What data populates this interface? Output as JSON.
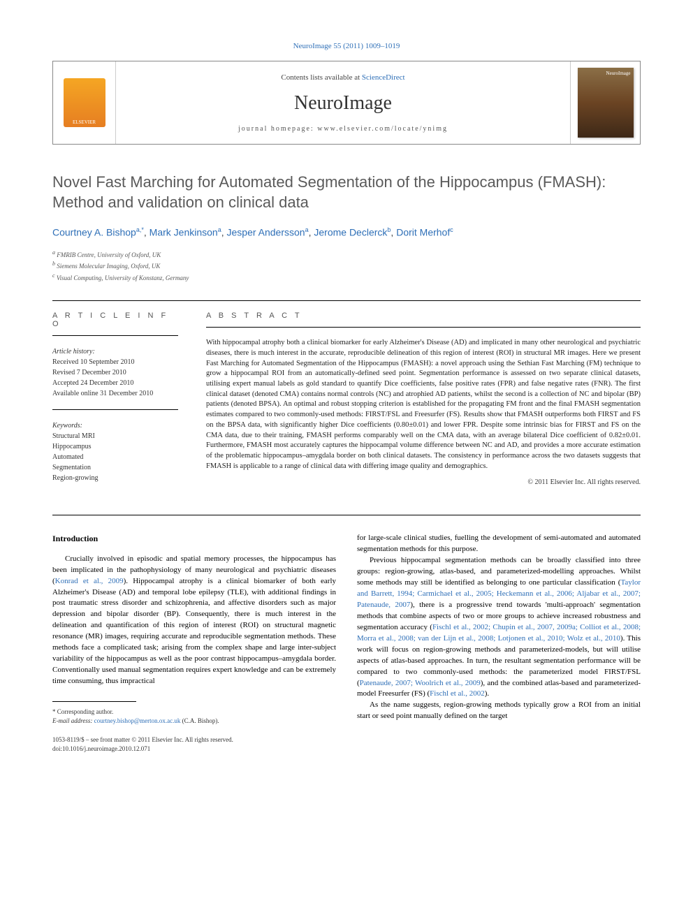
{
  "top_link": "NeuroImage 55 (2011) 1009–1019",
  "banner": {
    "elsevier": "ELSEVIER",
    "contents_prefix": "Contents lists available at ",
    "contents_link": "ScienceDirect",
    "journal": "NeuroImage",
    "homepage_prefix": "journal homepage: ",
    "homepage_url": "www.elsevier.com/locate/ynimg"
  },
  "title": "Novel Fast Marching for Automated Segmentation of the Hippocampus (FMASH): Method and validation on clinical data",
  "authors": [
    {
      "name": "Courtney A. Bishop",
      "sup": "a,*"
    },
    {
      "name": "Mark Jenkinson",
      "sup": "a"
    },
    {
      "name": "Jesper Andersson",
      "sup": "a"
    },
    {
      "name": "Jerome Declerck",
      "sup": "b"
    },
    {
      "name": "Dorit Merhof",
      "sup": "c"
    }
  ],
  "affiliations": [
    {
      "sup": "a",
      "text": "FMRIB Centre, University of Oxford, UK"
    },
    {
      "sup": "b",
      "text": "Siemens Molecular Imaging, Oxford, UK"
    },
    {
      "sup": "c",
      "text": "Visual Computing, University of Konstanz, Germany"
    }
  ],
  "article_info": {
    "heading": "A R T I C L E   I N F O",
    "history_label": "Article history:",
    "history": [
      "Received 10 September 2010",
      "Revised 7 December 2010",
      "Accepted 24 December 2010",
      "Available online 31 December 2010"
    ],
    "keywords_label": "Keywords:",
    "keywords": [
      "Structural MRI",
      "Hippocampus",
      "Automated",
      "Segmentation",
      "Region-growing"
    ]
  },
  "abstract": {
    "heading": "A B S T R A C T",
    "text": "With hippocampal atrophy both a clinical biomarker for early Alzheimer's Disease (AD) and implicated in many other neurological and psychiatric diseases, there is much interest in the accurate, reproducible delineation of this region of interest (ROI) in structural MR images. Here we present Fast Marching for Automated Segmentation of the Hippocampus (FMASH): a novel approach using the Sethian Fast Marching (FM) technique to grow a hippocampal ROI from an automatically-defined seed point. Segmentation performance is assessed on two separate clinical datasets, utilising expert manual labels as gold standard to quantify Dice coefficients, false positive rates (FPR) and false negative rates (FNR). The first clinical dataset (denoted CMA) contains normal controls (NC) and atrophied AD patients, whilst the second is a collection of NC and bipolar (BP) patients (denoted BPSA). An optimal and robust stopping criterion is established for the propagating FM front and the final FMASH segmentation estimates compared to two commonly-used methods: FIRST/FSL and Freesurfer (FS). Results show that FMASH outperforms both FIRST and FS on the BPSA data, with significantly higher Dice coefficients (0.80±0.01) and lower FPR. Despite some intrinsic bias for FIRST and FS on the CMA data, due to their training, FMASH performs comparably well on the CMA data, with an average bilateral Dice coefficient of 0.82±0.01. Furthermore, FMASH most accurately captures the hippocampal volume difference between NC and AD, and provides a more accurate estimation of the problematic hippocampus–amygdala border on both clinical datasets. The consistency in performance across the two datasets suggests that FMASH is applicable to a range of clinical data with differing image quality and demographics.",
    "copyright": "© 2011 Elsevier Inc. All rights reserved."
  },
  "body": {
    "intro_heading": "Introduction",
    "col1_p1_pre": "Crucially involved in episodic and spatial memory processes, the hippocampus has been implicated in the pathophysiology of many neurological and psychiatric diseases (",
    "col1_cite1": "Konrad et al., 2009",
    "col1_p1_post": "). Hippocampal atrophy is a clinical biomarker of both early Alzheimer's Disease (AD) and temporal lobe epilepsy (TLE), with additional findings in post traumatic stress disorder and schizophrenia, and affective disorders such as major depression and bipolar disorder (BP). Consequently, there is much interest in the delineation and quantification of this region of interest (ROI) on structural magnetic resonance (MR) images, requiring accurate and reproducible segmentation methods. These methods face a complicated task; arising from the complex shape and large inter-subject variability of the hippocampus as well as the poor contrast hippocampus–amygdala border. Conventionally used manual segmentation requires expert knowledge and can be extremely time consuming, thus impractical",
    "col2_p1": "for large-scale clinical studies, fuelling the development of semi-automated and automated segmentation methods for this purpose.",
    "col2_p2_pre": "Previous hippocampal segmentation methods can be broadly classified into three groups: region-growing, atlas-based, and parameterized-modelling approaches. Whilst some methods may still be identified as belonging to one particular classification (",
    "col2_cite2": "Taylor and Barrett, 1994; Carmichael et al., 2005; Heckemann et al., 2006; Aljabar et al., 2007; Patenaude, 2007",
    "col2_p2_mid": "), there is a progressive trend towards 'multi-approach' segmentation methods that combine aspects of two or more groups to achieve increased robustness and segmentation accuracy (",
    "col2_cite3": "Fischl et al., 2002; Chupin et al., 2007, 2009a; Colliot et al., 2008; Morra et al., 2008; van der Lijn et al., 2008; Lotjonen et al., 2010; Wolz et al., 2010",
    "col2_p2_mid2": "). This work will focus on region-growing methods and parameterized-models, but will utilise aspects of atlas-based approaches. In turn, the resultant segmentation performance will be compared to two commonly-used methods: the parameterized model FIRST/FSL (",
    "col2_cite4": "Patenaude, 2007; Woolrich et al., 2009",
    "col2_p2_mid3": "), and the combined atlas-based and parameterized-model Freesurfer (FS) (",
    "col2_cite5": "Fischl et al., 2002",
    "col2_p2_post": ").",
    "col2_p3": "As the name suggests, region-growing methods typically grow a ROI from an initial start or seed point manually defined on the target"
  },
  "footnote": {
    "corr": "* Corresponding author.",
    "email_label": "E-mail address:",
    "email": "courtney.bishop@merton.ox.ac.uk",
    "email_name": "(C.A. Bishop)."
  },
  "footer": {
    "issn": "1053-8119/$ – see front matter © 2011 Elsevier Inc. All rights reserved.",
    "doi": "doi:10.1016/j.neuroimage.2010.12.071"
  },
  "colors": {
    "link": "#2e6fb7",
    "text": "#000000",
    "gray": "#5a5a5a"
  }
}
